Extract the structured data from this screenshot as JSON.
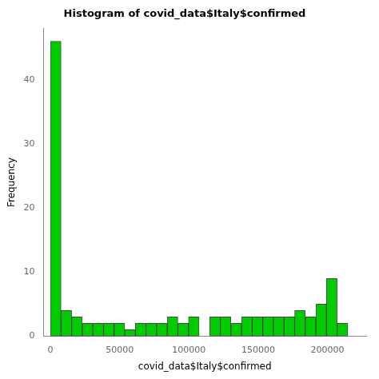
{
  "chart_data": {
    "type": "histogram",
    "title": "Histogram of covid_data$Italy$confirmed",
    "xlabel": "covid_data$Italy$confirmed",
    "ylabel": "Frequency",
    "bins": [
      0,
      7667,
      15333,
      23000,
      30667,
      38333,
      46000,
      53667,
      61333,
      69000,
      76667,
      84333,
      92000,
      99667,
      107333,
      115000,
      122667,
      130333,
      138000,
      145667,
      153333,
      161000,
      168667,
      176333,
      184000,
      191667,
      199333,
      207000,
      214667,
      222333
    ],
    "values": [
      46,
      4,
      3,
      2,
      2,
      2,
      2,
      1,
      2,
      2,
      2,
      3,
      2,
      3,
      0,
      3,
      3,
      2,
      3,
      3,
      3,
      3,
      3,
      4,
      3,
      5,
      9,
      2,
      0
    ],
    "color": "#00CC00",
    "xlim": [
      -5000,
      228000
    ],
    "ylim": [
      0,
      48
    ],
    "xticks": [
      0,
      50000,
      100000,
      150000,
      200000
    ],
    "yticks": [
      0,
      10,
      20,
      30,
      40
    ],
    "grid": false
  }
}
